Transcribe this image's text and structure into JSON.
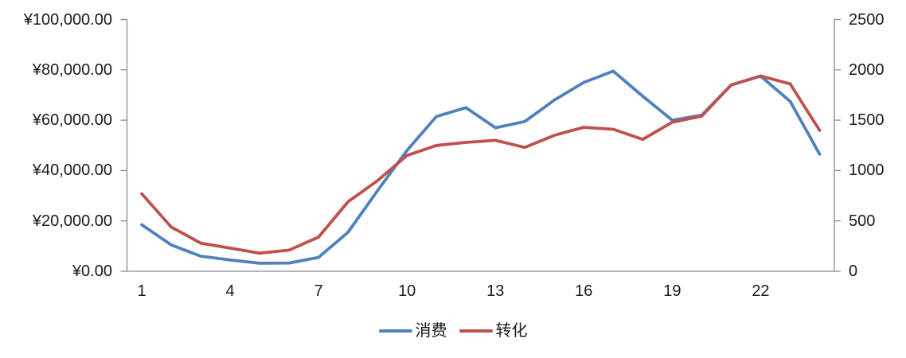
{
  "colors": {
    "series_blue": "#4F81BD",
    "series_red": "#C0504D",
    "axis_line": "#898989",
    "text": "#1A1A1A",
    "background": "#FFFFFF"
  },
  "chart_data": {
    "type": "line",
    "title": "",
    "x": [
      1,
      2,
      3,
      4,
      5,
      6,
      7,
      8,
      9,
      10,
      11,
      12,
      13,
      14,
      15,
      16,
      17,
      18,
      19,
      20,
      21,
      22,
      23,
      24
    ],
    "x_axis": {
      "tick_labels": [
        "1",
        "4",
        "7",
        "10",
        "13",
        "16",
        "19",
        "22"
      ],
      "tick_positions": [
        1,
        4,
        7,
        10,
        13,
        16,
        19,
        22
      ]
    },
    "left_axis": {
      "min": 0,
      "max": 100000,
      "step": 20000,
      "tick_labels": [
        "¥100,000.00",
        "¥80,000.00",
        "¥60,000.00",
        "¥40,000.00",
        "¥20,000.00",
        "¥0.00"
      ]
    },
    "right_axis": {
      "min": 0,
      "max": 2500,
      "step": 500,
      "tick_labels": [
        "2500",
        "2000",
        "1500",
        "1000",
        "500",
        "0"
      ]
    },
    "grid": false,
    "legend": {
      "position": "bottom"
    },
    "series": [
      {
        "name": "消费",
        "slug": "consumption",
        "axis": "left",
        "color": "#4F81BD",
        "values": [
          18500,
          10500,
          6000,
          4500,
          3200,
          3300,
          5500,
          15500,
          32000,
          48000,
          61500,
          65000,
          57000,
          59500,
          68000,
          75000,
          79500,
          69500,
          60000,
          62000,
          74000,
          77500,
          67500,
          46500
        ]
      },
      {
        "name": "转化",
        "slug": "conversion",
        "axis": "right",
        "color": "#C0504D",
        "values": [
          770,
          440,
          280,
          230,
          180,
          210,
          340,
          690,
          900,
          1150,
          1250,
          1280,
          1300,
          1230,
          1350,
          1430,
          1410,
          1310,
          1480,
          1540,
          1850,
          1940,
          1860,
          1400
        ]
      }
    ]
  }
}
